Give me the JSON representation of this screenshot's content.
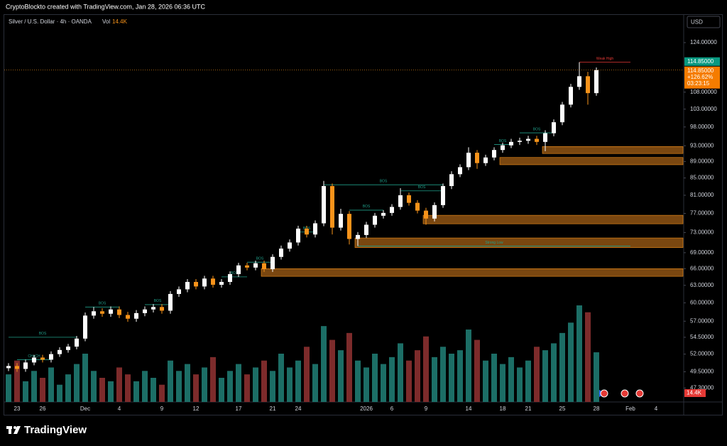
{
  "header": "CryptoBlockto created with TradingView.com, Jan 28, 2026 06:36 UTC",
  "footer": "TradingView",
  "chart_data": {
    "type": "candlestick",
    "title": "Silver / U.S. Dollar · 4h · OANDA",
    "volume_title": "Vol",
    "last_volume_label": "14.4K",
    "currency": "USD",
    "last_price_label": "114.85000",
    "change_label": "+126.62%",
    "countdown": "03:23:15",
    "log": true,
    "grid": false,
    "ylim": [
      45.5,
      133.7
    ],
    "yticks": [
      {
        "value": 124,
        "label": "124.00000"
      },
      {
        "value": 108,
        "label": "108.00000"
      },
      {
        "value": 103,
        "label": "103.00000"
      },
      {
        "value": 98,
        "label": "98.00000"
      },
      {
        "value": 93,
        "label": "93.00000"
      },
      {
        "value": 89,
        "label": "89.00000"
      },
      {
        "value": 85,
        "label": "85.00000"
      },
      {
        "value": 81,
        "label": "81.00000"
      },
      {
        "value": 77,
        "label": "77.00000"
      },
      {
        "value": 73,
        "label": "73.00000"
      },
      {
        "value": 69,
        "label": "69.00000"
      },
      {
        "value": 66,
        "label": "66.00000"
      },
      {
        "value": 63,
        "label": "63.00000"
      },
      {
        "value": 60,
        "label": "60.00000"
      },
      {
        "value": 57,
        "label": "57.00000"
      },
      {
        "value": 54.5,
        "label": "54.50000"
      },
      {
        "value": 52,
        "label": "52.00000"
      },
      {
        "value": 49.5,
        "label": "49.50000"
      },
      {
        "value": 47.3,
        "label": "47.30000"
      }
    ],
    "categories": [
      null,
      "23",
      null,
      null,
      "26",
      null,
      null,
      null,
      null,
      "Dec",
      null,
      null,
      null,
      "4",
      null,
      null,
      null,
      null,
      "9",
      null,
      null,
      null,
      "12",
      null,
      null,
      null,
      null,
      "17",
      null,
      null,
      null,
      "21",
      null,
      null,
      "24",
      null,
      null,
      null,
      null,
      null,
      null,
      null,
      "2026",
      null,
      null,
      "6",
      null,
      null,
      null,
      "9",
      null,
      null,
      null,
      null,
      "14",
      null,
      null,
      null,
      "18",
      null,
      null,
      "21",
      null,
      null,
      null,
      "25",
      null,
      null,
      null,
      "28",
      null,
      null,
      null,
      "Feb",
      null,
      null,
      "4"
    ],
    "open": [
      50.0,
      50.3,
      49.9,
      50.8,
      51.5,
      51.2,
      52.0,
      52.6,
      53.1,
      54.3,
      57.9,
      58.6,
      58.2,
      58.9,
      58.0,
      57.4,
      58.3,
      58.9,
      59.3,
      58.7,
      61.5,
      62.3,
      63.6,
      62.8,
      64.2,
      63.1,
      63.6,
      65.0,
      66.6,
      66.2,
      67.0,
      65.9,
      68.2,
      69.8,
      71.0,
      73.8,
      72.6,
      74.9,
      83.1,
      74.0,
      76.9,
      71.7,
      72.5,
      74.6,
      76.5,
      77.1,
      78.4,
      81.0,
      79.3,
      77.6,
      75.9,
      78.8,
      83.1,
      85.9,
      87.6,
      91.2,
      88.6,
      90.0,
      91.9,
      93.1,
      94.0,
      94.3,
      94.8,
      94.0,
      96.3,
      99.3,
      104.3,
      109.6,
      112.9,
      107.7,
      null,
      null,
      null,
      null,
      null,
      null,
      null
    ],
    "high": [
      50.7,
      50.7,
      51.2,
      51.9,
      51.9,
      52.4,
      53.0,
      53.5,
      54.7,
      58.4,
      59.3,
      59.1,
      59.4,
      59.4,
      58.5,
      58.8,
      59.4,
      59.8,
      59.8,
      62.0,
      62.8,
      64.1,
      64.1,
      64.7,
      64.7,
      64.1,
      65.5,
      67.1,
      67.1,
      67.5,
      67.5,
      68.7,
      70.4,
      71.6,
      74.4,
      74.4,
      75.5,
      84.3,
      83.7,
      78.0,
      77.5,
      73.1,
      75.2,
      77.1,
      77.7,
      79.0,
      82.6,
      81.6,
      79.9,
      78.2,
      79.4,
      83.7,
      86.6,
      88.3,
      92.6,
      91.9,
      90.7,
      92.6,
      93.8,
      94.8,
      95.1,
      95.6,
      95.6,
      97.1,
      100.1,
      105.1,
      110.5,
      117.4,
      114.3,
      115.7,
      null,
      null,
      null,
      null,
      null,
      null,
      null
    ],
    "low": [
      49.6,
      49.5,
      49.5,
      50.4,
      50.8,
      50.8,
      51.6,
      52.2,
      52.7,
      53.9,
      57.4,
      57.7,
      57.7,
      57.5,
      56.9,
      56.9,
      57.8,
      58.4,
      58.2,
      58.2,
      61.0,
      61.8,
      62.3,
      62.3,
      62.6,
      62.6,
      63.1,
      64.5,
      65.7,
      65.7,
      65.4,
      65.4,
      67.7,
      69.2,
      70.4,
      72.0,
      72.0,
      74.3,
      72.6,
      73.4,
      70.6,
      70.3,
      71.9,
      74.0,
      75.9,
      76.5,
      77.8,
      78.7,
      77.0,
      74.6,
      75.3,
      78.2,
      82.4,
      85.2,
      86.9,
      87.2,
      87.9,
      89.3,
      91.2,
      92.4,
      93.2,
      93.5,
      93.2,
      91.6,
      95.5,
      98.5,
      103.5,
      108.7,
      104.3,
      106.9,
      null,
      null,
      null,
      null,
      null,
      null,
      null
    ],
    "close": [
      50.3,
      49.9,
      50.8,
      51.5,
      51.2,
      52.0,
      52.6,
      53.1,
      54.3,
      57.9,
      58.6,
      58.2,
      58.9,
      58.0,
      57.4,
      58.3,
      58.9,
      59.3,
      58.7,
      61.5,
      62.3,
      63.6,
      62.8,
      64.2,
      63.1,
      63.6,
      65.0,
      66.6,
      66.2,
      67.0,
      65.9,
      68.2,
      69.8,
      71.0,
      73.8,
      72.6,
      74.9,
      83.1,
      74.0,
      76.9,
      71.7,
      72.5,
      74.6,
      76.5,
      77.1,
      78.4,
      81.0,
      79.3,
      77.6,
      75.9,
      78.8,
      83.1,
      85.9,
      87.6,
      91.2,
      88.6,
      90.0,
      91.9,
      93.1,
      94.0,
      94.3,
      94.8,
      94.0,
      96.3,
      99.3,
      104.3,
      109.6,
      112.9,
      107.7,
      114.85,
      null,
      null,
      null,
      null,
      null,
      null,
      null
    ],
    "volume": [
      8,
      12,
      6,
      9,
      7,
      10,
      5,
      8,
      11,
      14,
      9,
      7,
      6,
      10,
      8,
      6,
      9,
      7,
      5,
      12,
      9,
      11,
      8,
      10,
      13,
      7,
      9,
      11,
      8,
      10,
      12,
      9,
      14,
      10,
      12,
      16,
      11,
      22,
      18,
      15,
      20,
      12,
      10,
      14,
      11,
      13,
      17,
      12,
      15,
      19,
      13,
      16,
      14,
      15,
      21,
      18,
      12,
      14,
      11,
      13,
      10,
      12,
      16,
      15,
      17,
      20,
      23,
      28,
      26,
      14.4,
      null,
      null,
      null,
      null,
      null,
      null,
      null
    ],
    "up_color": "#ffffff",
    "down_color": "#f7931a",
    "volume_up_color": "#1c6e66",
    "volume_down_color": "#7d2b2b",
    "zone_color": "#7a4710",
    "zones": [
      {
        "from": 63,
        "low": 91.0,
        "high": 92.8
      },
      {
        "from": 58,
        "low": 88.2,
        "high": 90.0
      },
      {
        "from": 49,
        "low": 74.8,
        "high": 76.6
      },
      {
        "from": 41,
        "low": 70.0,
        "high": 71.9
      },
      {
        "from": 30,
        "low": 64.6,
        "high": 66.0
      }
    ],
    "structures": [
      {
        "label": "BOS",
        "price": 54.5,
        "from": 0,
        "to": 8,
        "color": "#1f9e89"
      },
      {
        "label": "CHoCH",
        "price": 51.2,
        "from": 1,
        "to": 5,
        "color": "#1f9e89"
      },
      {
        "label": "BOS",
        "price": 59.3,
        "from": 9,
        "to": 13,
        "color": "#1f9e89"
      },
      {
        "label": "BOS",
        "price": 59.7,
        "from": 16,
        "to": 19,
        "color": "#1f9e89"
      },
      {
        "label": "BOS",
        "price": 64.5,
        "from": 25,
        "to": 28,
        "color": "#1f9e89"
      },
      {
        "label": "BOS",
        "price": 67.2,
        "from": 28,
        "to": 31,
        "color": "#1f9e89"
      },
      {
        "label": "BOS",
        "price": 73.1,
        "from": 34,
        "to": 36,
        "color": "#1f9e89"
      },
      {
        "label": "BOS",
        "price": 83.4,
        "from": 37,
        "to": 51,
        "color": "#1f9e89"
      },
      {
        "label": "BOS",
        "price": 77.7,
        "from": 40,
        "to": 44,
        "color": "#1f9e89"
      },
      {
        "label": "BOS",
        "price": 82.0,
        "from": 46,
        "to": 51,
        "color": "#1f9e89"
      },
      {
        "label": "BOS",
        "price": 93.3,
        "from": 57,
        "to": 59,
        "color": "#1f9e89"
      },
      {
        "label": "BOS",
        "price": 96.4,
        "from": 60,
        "to": 64,
        "color": "#1f9e89"
      },
      {
        "label": "Weak High",
        "price": 117.4,
        "from": 67,
        "to": 73,
        "color": "#e53935"
      },
      {
        "label": "Strong Low",
        "price": 70.3,
        "from": 41,
        "to": 73,
        "color": "#1f9e89"
      }
    ]
  }
}
